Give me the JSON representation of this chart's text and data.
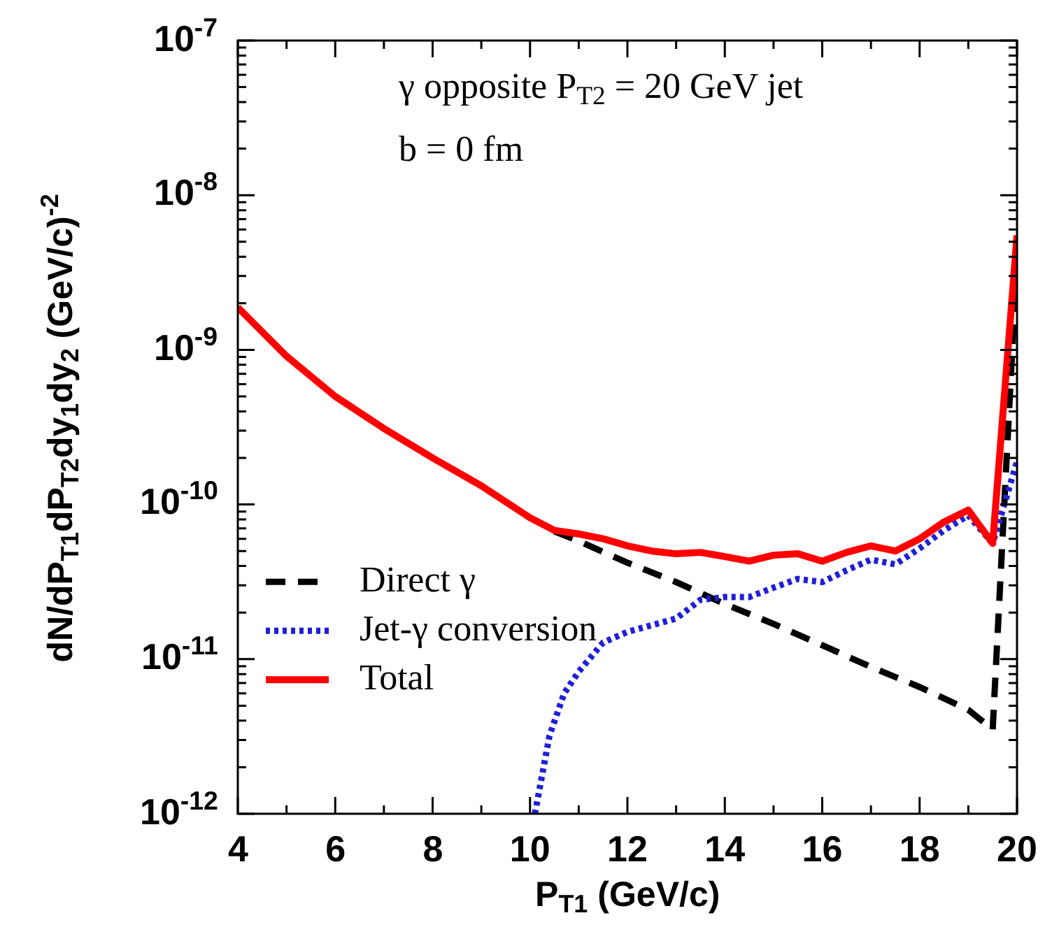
{
  "chart_data": {
    "type": "line",
    "xlabel": "P$_{T1}$ (GeV/c)",
    "ylabel": "dN/dP$_{T1}$dP$_{T2}$dy$_{1}$dy$_{2}$ (GeV/c)$^{-2}$",
    "annotations": [
      "γ opposite P$_{T2}$ = 20 GeV jet",
      "b = 0 fm"
    ],
    "log": "y",
    "grid": false,
    "legend": "left",
    "marker": "none",
    "xlim": [
      4,
      20
    ],
    "xticks": [
      4,
      {
        "value": 5,
        "label": null
      },
      6,
      {
        "value": 7,
        "label": null
      },
      8,
      {
        "value": 9,
        "label": null
      },
      10,
      {
        "value": 11,
        "label": null
      },
      12,
      {
        "value": 13,
        "label": null
      },
      14,
      {
        "value": 15,
        "label": null
      },
      16,
      {
        "value": 17,
        "label": null
      },
      18,
      {
        "value": 19,
        "label": null
      },
      20
    ],
    "ylim": [
      1e-12,
      1e-07
    ],
    "yticks": [
      {
        "value": 1e-12,
        "label": "10$^{-12}$"
      },
      {
        "value": 2e-12,
        "label": null
      },
      {
        "value": 3e-12,
        "label": null
      },
      {
        "value": 4e-12,
        "label": null
      },
      {
        "value": 5e-12,
        "label": null
      },
      {
        "value": 6e-12,
        "label": null
      },
      {
        "value": 7e-12,
        "label": null
      },
      {
        "value": 8e-12,
        "label": null
      },
      {
        "value": 9e-12,
        "label": null
      },
      {
        "value": 1e-11,
        "label": "10$^{-11}$"
      },
      {
        "value": 2e-11,
        "label": null
      },
      {
        "value": 3e-11,
        "label": null
      },
      {
        "value": 4e-11,
        "label": null
      },
      {
        "value": 5e-11,
        "label": null
      },
      {
        "value": 6e-11,
        "label": null
      },
      {
        "value": 7e-11,
        "label": null
      },
      {
        "value": 8e-11,
        "label": null
      },
      {
        "value": 9e-11,
        "label": null
      },
      {
        "value": 1e-10,
        "label": "10$^{-10}$"
      },
      {
        "value": 2e-10,
        "label": null
      },
      {
        "value": 3e-10,
        "label": null
      },
      {
        "value": 4e-10,
        "label": null
      },
      {
        "value": 5e-10,
        "label": null
      },
      {
        "value": 6e-10,
        "label": null
      },
      {
        "value": 7e-10,
        "label": null
      },
      {
        "value": 8e-10,
        "label": null
      },
      {
        "value": 9e-10,
        "label": null
      },
      {
        "value": 1e-09,
        "label": "10$^{-9}$"
      },
      {
        "value": 2e-09,
        "label": null
      },
      {
        "value": 3e-09,
        "label": null
      },
      {
        "value": 4e-09,
        "label": null
      },
      {
        "value": 5e-09,
        "label": null
      },
      {
        "value": 6e-09,
        "label": null
      },
      {
        "value": 7e-09,
        "label": null
      },
      {
        "value": 8e-09,
        "label": null
      },
      {
        "value": 9e-09,
        "label": null
      },
      {
        "value": 1e-08,
        "label": "10$^{-8}$"
      },
      {
        "value": 2e-08,
        "label": null
      },
      {
        "value": 3e-08,
        "label": null
      },
      {
        "value": 4e-08,
        "label": null
      },
      {
        "value": 5e-08,
        "label": null
      },
      {
        "value": 6e-08,
        "label": null
      },
      {
        "value": 7e-08,
        "label": null
      },
      {
        "value": 8e-08,
        "label": null
      },
      {
        "value": 9e-08,
        "label": null
      },
      {
        "value": 1e-07,
        "label": "10$^{-7}$"
      }
    ],
    "series": [
      {
        "name": "Direct γ",
        "color": "#000000",
        "line_style": "dashed",
        "x": [
          10.5,
          11,
          12,
          13,
          14,
          15,
          16,
          17,
          18,
          19,
          19.5,
          20
        ],
        "values": [
          6.7e-11,
          5.8e-11,
          4.2e-11,
          3.15e-11,
          2.27e-11,
          1.69e-11,
          1.23e-11,
          8.9e-12,
          6.6e-12,
          4.7e-12,
          3.5e-12,
          4e-09
        ]
      },
      {
        "name": "Jet-γ conversion",
        "color": "#1f1fd8",
        "line_style": "dotted",
        "x": [
          10.1,
          10.4,
          10.7,
          11,
          11.5,
          12,
          13,
          13.5,
          14,
          14.5,
          15,
          15.5,
          16,
          16.5,
          17,
          17.5,
          18,
          18.5,
          19,
          19.5,
          20
        ],
        "values": [
          1e-12,
          3.2e-12,
          6e-12,
          8.3e-12,
          1.28e-11,
          1.5e-11,
          1.83e-11,
          2.42e-11,
          2.52e-11,
          2.52e-11,
          2.9e-11,
          3.3e-11,
          3.15e-11,
          3.75e-11,
          4.4e-11,
          4.1e-11,
          5.2e-11,
          6.8e-11,
          8.5e-11,
          5.6e-11,
          1.9e-10
        ]
      },
      {
        "name": "Total",
        "color": "#ff0000",
        "line_style": "solid",
        "x": [
          4,
          5,
          6,
          7,
          8,
          9,
          10,
          10.5,
          11,
          11.5,
          12,
          12.5,
          13,
          13.5,
          14,
          14.5,
          15,
          15.5,
          16,
          16.5,
          17,
          17.5,
          18,
          18.5,
          19,
          19.5,
          20
        ],
        "values": [
          1.88e-09,
          9.1e-10,
          5e-10,
          3.1e-10,
          2e-10,
          1.32e-10,
          8.2e-11,
          6.8e-11,
          6.45e-11,
          6e-11,
          5.4e-11,
          5e-11,
          4.8e-11,
          4.9e-11,
          4.6e-11,
          4.3e-11,
          4.7e-11,
          4.8e-11,
          4.3e-11,
          4.9e-11,
          5.4e-11,
          5e-11,
          6e-11,
          7.7e-11,
          9.2e-11,
          5.6e-11,
          5.5e-09
        ]
      }
    ]
  }
}
